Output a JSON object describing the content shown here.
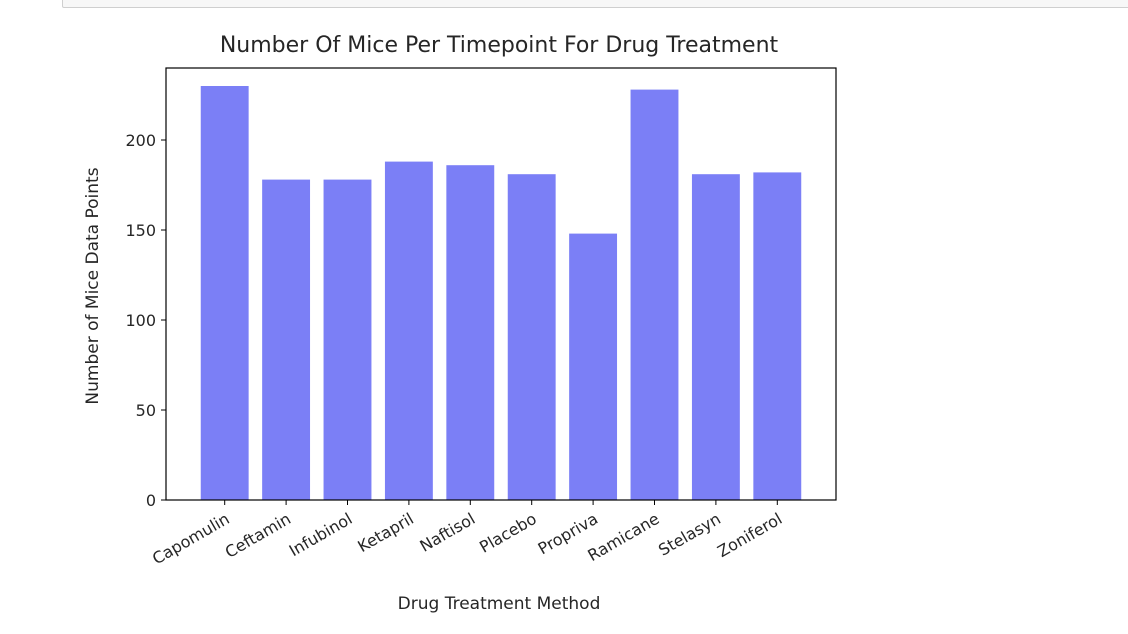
{
  "chart_data": {
    "type": "bar",
    "title": "Number Of Mice Per Timepoint For Drug Treatment",
    "xlabel": "Drug Treatment Method",
    "ylabel": "Number of Mice Data Points",
    "categories": [
      "Capomulin",
      "Ceftamin",
      "Infubinol",
      "Ketapril",
      "Naftisol",
      "Placebo",
      "Propriva",
      "Ramicane",
      "Stelasyn",
      "Zoniferol"
    ],
    "values": [
      230,
      178,
      178,
      188,
      186,
      181,
      148,
      228,
      181,
      182
    ],
    "ylim": [
      0,
      240
    ],
    "yticks": [
      0,
      50,
      100,
      150,
      200
    ],
    "bar_color": "#7b7ff6",
    "grid": false,
    "legend": "none"
  }
}
